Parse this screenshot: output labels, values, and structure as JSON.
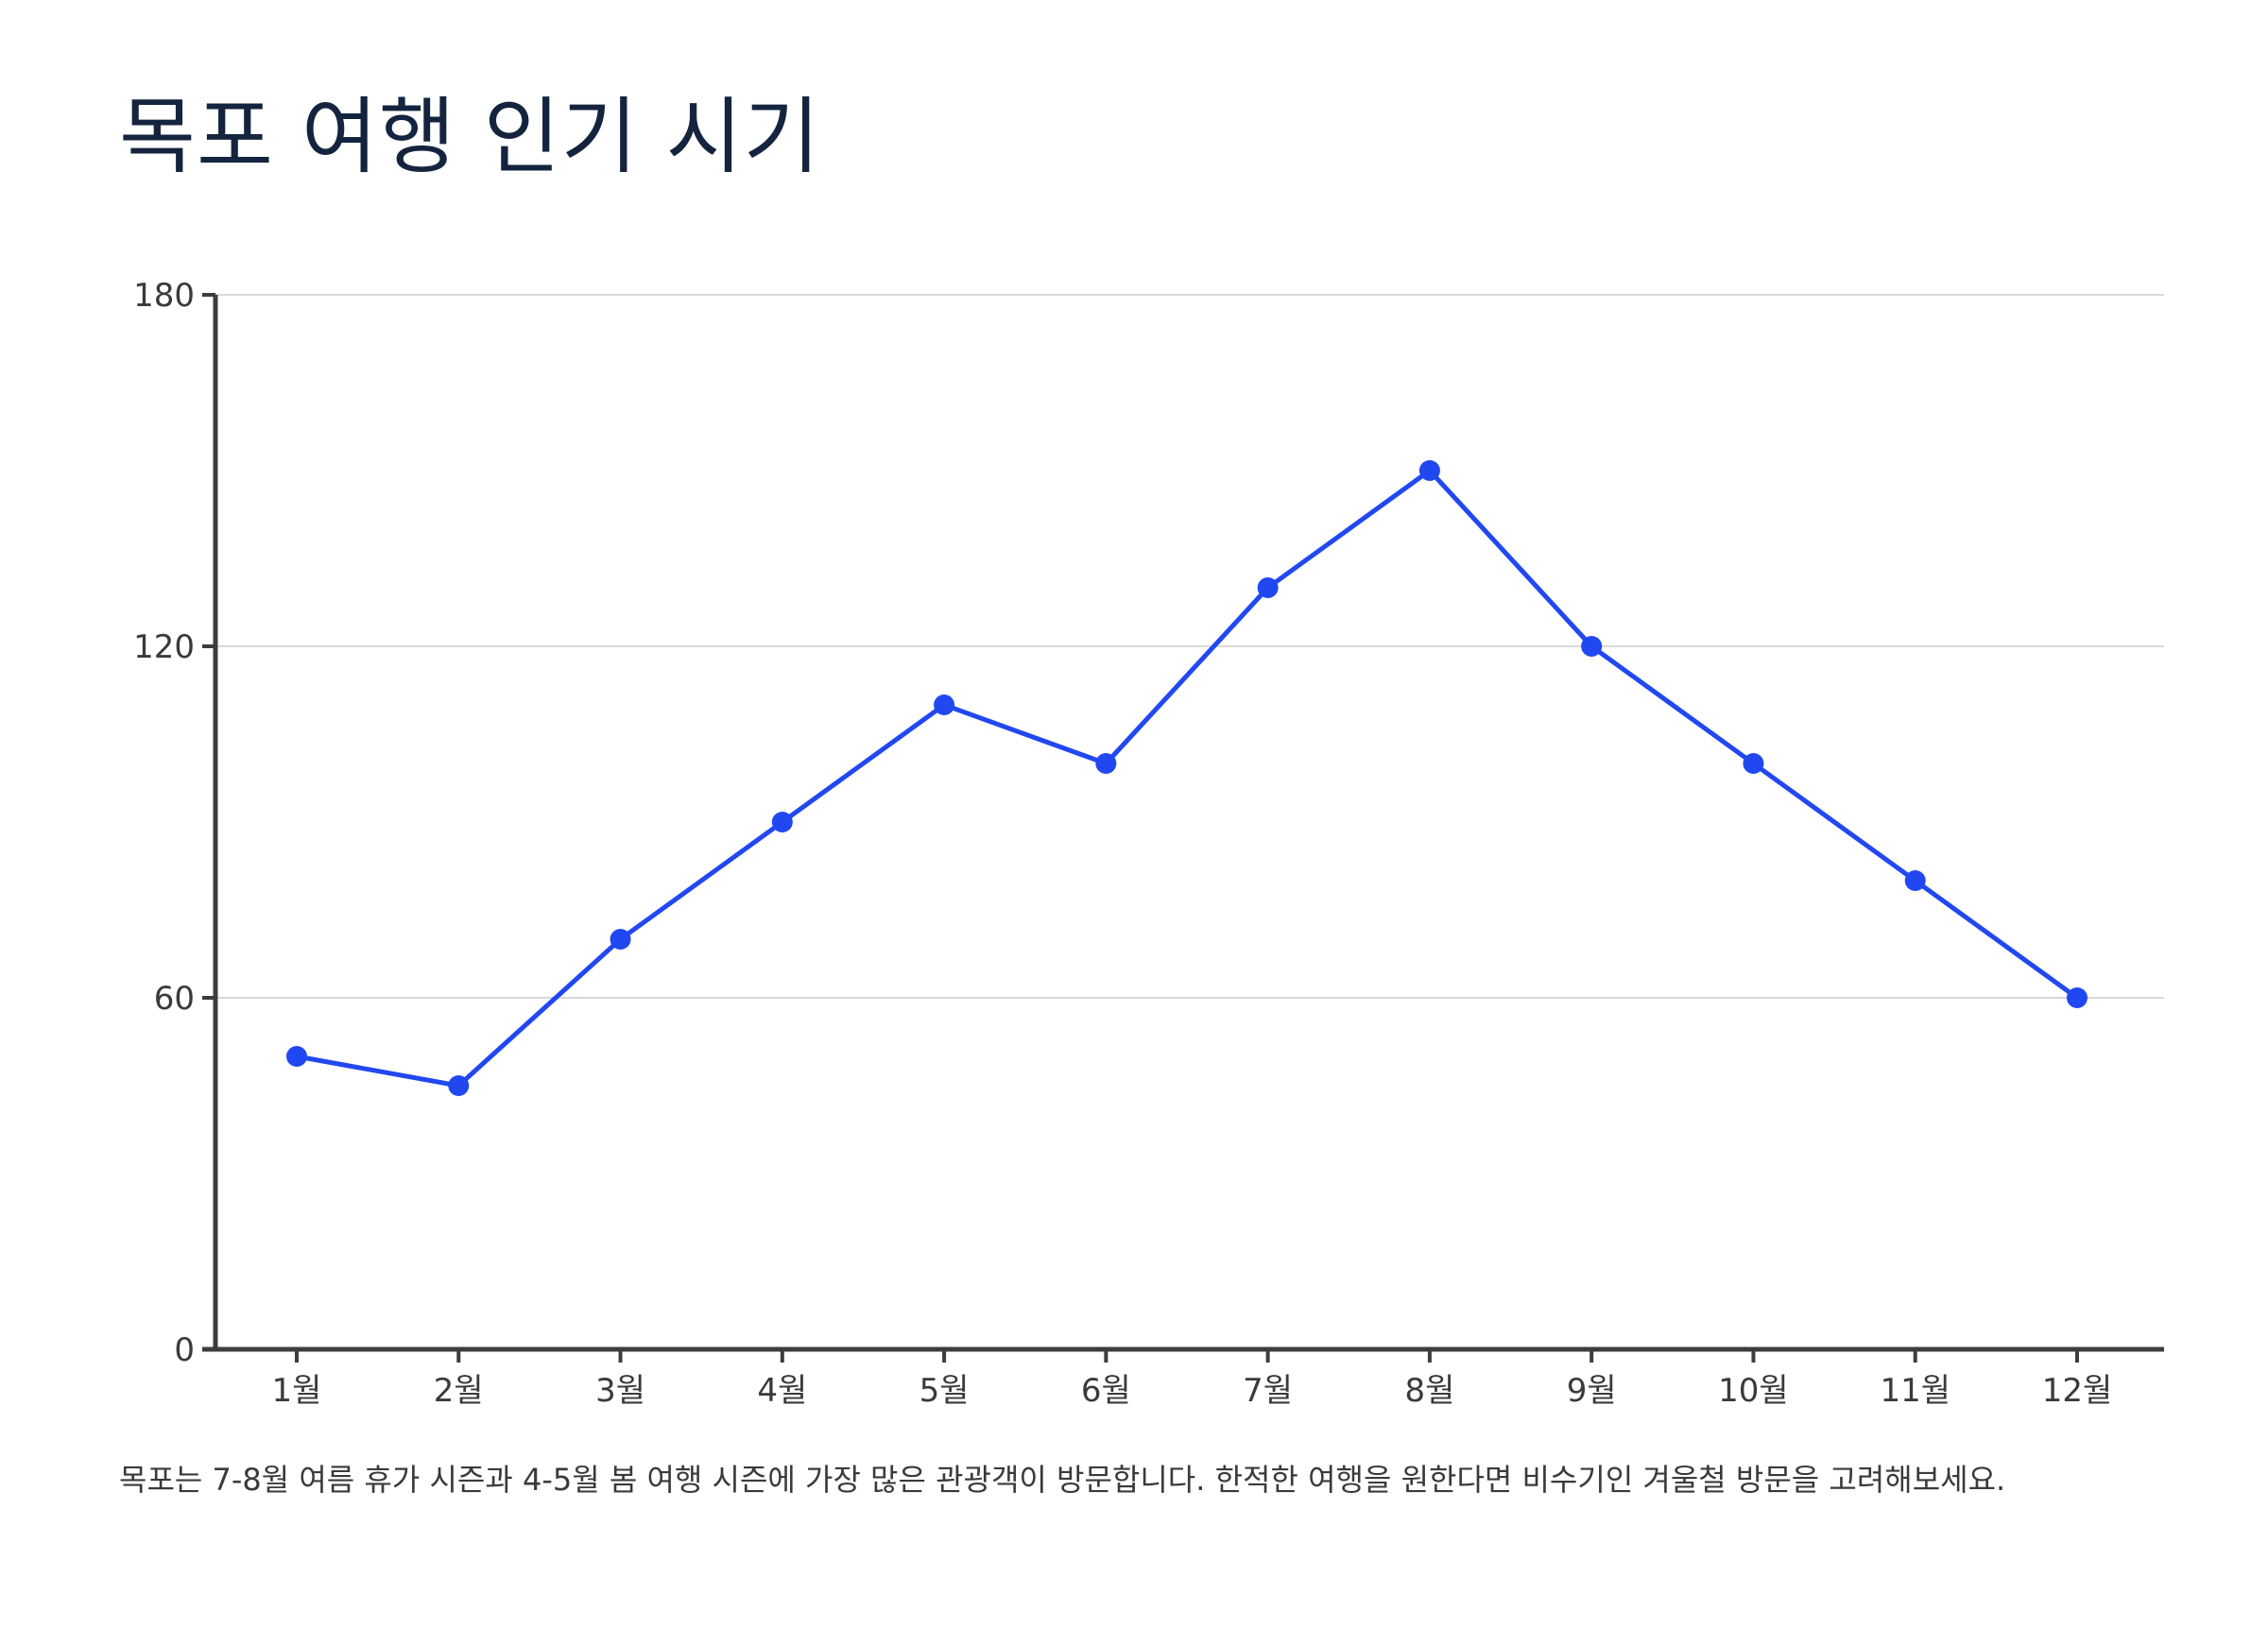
{
  "chart_data": {
    "type": "line",
    "title": "목포 여행 인기 시기",
    "caption": "목포는 7-8월 여름 휴가 시즌과 4-5월 봄 여행 시즌에 가장 많은 관광객이 방문합니다. 한적한 여행을 원한다면 비수기인 겨울철 방문을 고려해보세요.",
    "categories": [
      "1월",
      "2월",
      "3월",
      "4월",
      "5월",
      "6월",
      "7월",
      "8월",
      "9월",
      "10월",
      "11월",
      "12월"
    ],
    "series": [
      {
        "values": [
          50,
          45,
          70,
          90,
          110,
          100,
          130,
          150,
          120,
          100,
          80,
          60
        ]
      }
    ],
    "yticks": [
      0,
      60,
      120,
      180
    ],
    "ylim": [
      0,
      180
    ],
    "xlabel": "",
    "ylabel": "",
    "grid": true,
    "legend": "none",
    "colors": {
      "line": "#2148f0",
      "axis": "#3d3d3d",
      "grid": "#d9d9d9"
    }
  }
}
